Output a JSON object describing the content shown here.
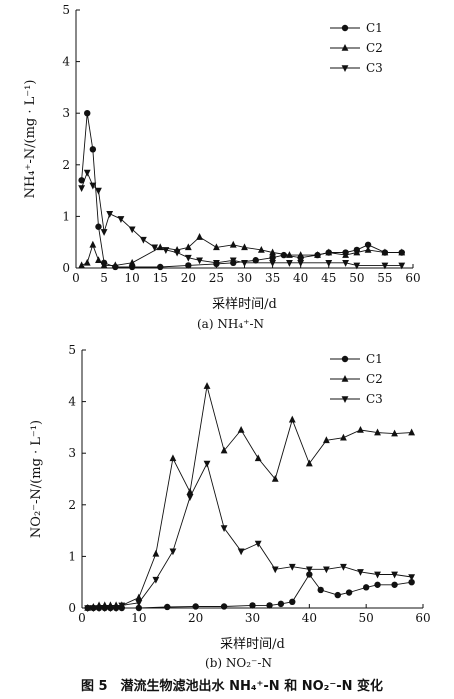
{
  "chart_data": [
    {
      "type": "line",
      "xlabel": "采样时间/d",
      "ylabel": "NH₄⁺-N/(mg · L⁻¹)",
      "subtitle": "(a) NH₄⁺-N",
      "xlim": [
        0,
        60
      ],
      "ylim": [
        0,
        5
      ],
      "xticks": [
        "0",
        "5",
        "10",
        "15",
        "20",
        "25",
        "30",
        "35",
        "40",
        "45",
        "50",
        "55",
        "60"
      ],
      "yticks": [
        "0",
        "1",
        "2",
        "3",
        "4",
        "5"
      ],
      "legend_position": "top-right",
      "series": [
        {
          "name": "C1",
          "marker": "circle",
          "points": [
            [
              1,
              1.7
            ],
            [
              2,
              3.0
            ],
            [
              3,
              2.3
            ],
            [
              4,
              0.8
            ],
            [
              5,
              0.1
            ],
            [
              7,
              0.02
            ],
            [
              10,
              0.02
            ],
            [
              15,
              0.02
            ],
            [
              20,
              0.05
            ],
            [
              25,
              0.08
            ],
            [
              28,
              0.1
            ],
            [
              32,
              0.15
            ],
            [
              35,
              0.2
            ],
            [
              37,
              0.25
            ],
            [
              40,
              0.2
            ],
            [
              43,
              0.25
            ],
            [
              45,
              0.3
            ],
            [
              48,
              0.3
            ],
            [
              50,
              0.35
            ],
            [
              52,
              0.45
            ],
            [
              55,
              0.3
            ],
            [
              58,
              0.3
            ]
          ]
        },
        {
          "name": "C2",
          "marker": "triangle-up",
          "points": [
            [
              1,
              0.05
            ],
            [
              2,
              0.1
            ],
            [
              3,
              0.45
            ],
            [
              4,
              0.15
            ],
            [
              5,
              0.05
            ],
            [
              7,
              0.05
            ],
            [
              10,
              0.1
            ],
            [
              15,
              0.4
            ],
            [
              18,
              0.35
            ],
            [
              20,
              0.4
            ],
            [
              22,
              0.6
            ],
            [
              25,
              0.4
            ],
            [
              28,
              0.45
            ],
            [
              30,
              0.4
            ],
            [
              33,
              0.35
            ],
            [
              35,
              0.3
            ],
            [
              38,
              0.25
            ],
            [
              40,
              0.25
            ],
            [
              43,
              0.25
            ],
            [
              45,
              0.3
            ],
            [
              48,
              0.25
            ],
            [
              50,
              0.3
            ],
            [
              52,
              0.35
            ],
            [
              55,
              0.3
            ],
            [
              58,
              0.3
            ]
          ]
        },
        {
          "name": "C3",
          "marker": "triangle-down",
          "points": [
            [
              1,
              1.55
            ],
            [
              2,
              1.85
            ],
            [
              3,
              1.6
            ],
            [
              4,
              1.5
            ],
            [
              5,
              0.7
            ],
            [
              6,
              1.05
            ],
            [
              8,
              0.95
            ],
            [
              10,
              0.75
            ],
            [
              12,
              0.55
            ],
            [
              14,
              0.4
            ],
            [
              16,
              0.35
            ],
            [
              18,
              0.3
            ],
            [
              20,
              0.2
            ],
            [
              22,
              0.15
            ],
            [
              25,
              0.1
            ],
            [
              28,
              0.15
            ],
            [
              30,
              0.1
            ],
            [
              35,
              0.1
            ],
            [
              38,
              0.1
            ],
            [
              40,
              0.1
            ],
            [
              45,
              0.1
            ],
            [
              48,
              0.1
            ],
            [
              50,
              0.05
            ],
            [
              55,
              0.05
            ],
            [
              58,
              0.05
            ]
          ]
        }
      ]
    },
    {
      "type": "line",
      "xlabel": "采样时间/d",
      "ylabel": "NO₂⁻-N/(mg · L⁻¹)",
      "subtitle": "(b) NO₂⁻-N",
      "xlim": [
        0,
        60
      ],
      "ylim": [
        0,
        5
      ],
      "xticks": [
        "0",
        "10",
        "20",
        "30",
        "40",
        "50",
        "60"
      ],
      "yticks": [
        "0",
        "1",
        "2",
        "3",
        "4",
        "5"
      ],
      "legend_position": "top-right",
      "series": [
        {
          "name": "C1",
          "marker": "circle",
          "points": [
            [
              1,
              0
            ],
            [
              2,
              0
            ],
            [
              3,
              0
            ],
            [
              4,
              0
            ],
            [
              5,
              0
            ],
            [
              6,
              0
            ],
            [
              7,
              0
            ],
            [
              10,
              0
            ],
            [
              15,
              0.02
            ],
            [
              20,
              0.03
            ],
            [
              25,
              0.03
            ],
            [
              30,
              0.05
            ],
            [
              33,
              0.05
            ],
            [
              35,
              0.08
            ],
            [
              37,
              0.12
            ],
            [
              40,
              0.65
            ],
            [
              42,
              0.35
            ],
            [
              45,
              0.25
            ],
            [
              47,
              0.3
            ],
            [
              50,
              0.4
            ],
            [
              52,
              0.45
            ],
            [
              55,
              0.45
            ],
            [
              58,
              0.5
            ]
          ]
        },
        {
          "name": "C2",
          "marker": "triangle-up",
          "points": [
            [
              1,
              0
            ],
            [
              2,
              0.02
            ],
            [
              3,
              0.05
            ],
            [
              4,
              0.05
            ],
            [
              5,
              0.05
            ],
            [
              6,
              0.05
            ],
            [
              7,
              0.05
            ],
            [
              10,
              0.2
            ],
            [
              13,
              1.05
            ],
            [
              16,
              2.9
            ],
            [
              19,
              2.25
            ],
            [
              22,
              4.3
            ],
            [
              25,
              3.05
            ],
            [
              28,
              3.45
            ],
            [
              31,
              2.9
            ],
            [
              34,
              2.5
            ],
            [
              37,
              3.65
            ],
            [
              40,
              2.8
            ],
            [
              43,
              3.25
            ],
            [
              46,
              3.3
            ],
            [
              49,
              3.45
            ],
            [
              52,
              3.4
            ],
            [
              55,
              3.38
            ],
            [
              58,
              3.4
            ]
          ]
        },
        {
          "name": "C3",
          "marker": "triangle-down",
          "points": [
            [
              1,
              0
            ],
            [
              2,
              0
            ],
            [
              3,
              0
            ],
            [
              4,
              0
            ],
            [
              5,
              0
            ],
            [
              6,
              0
            ],
            [
              7,
              0.05
            ],
            [
              10,
              0.1
            ],
            [
              13,
              0.55
            ],
            [
              16,
              1.1
            ],
            [
              19,
              2.15
            ],
            [
              22,
              2.8
            ],
            [
              25,
              1.55
            ],
            [
              28,
              1.1
            ],
            [
              31,
              1.25
            ],
            [
              34,
              0.75
            ],
            [
              37,
              0.8
            ],
            [
              40,
              0.75
            ],
            [
              43,
              0.75
            ],
            [
              46,
              0.8
            ],
            [
              49,
              0.7
            ],
            [
              52,
              0.65
            ],
            [
              55,
              0.65
            ],
            [
              58,
              0.6
            ]
          ]
        }
      ]
    }
  ],
  "caption": "图 5　潜流生物滤池出水 NH₄⁺-N 和 NO₂⁻-N 变化"
}
